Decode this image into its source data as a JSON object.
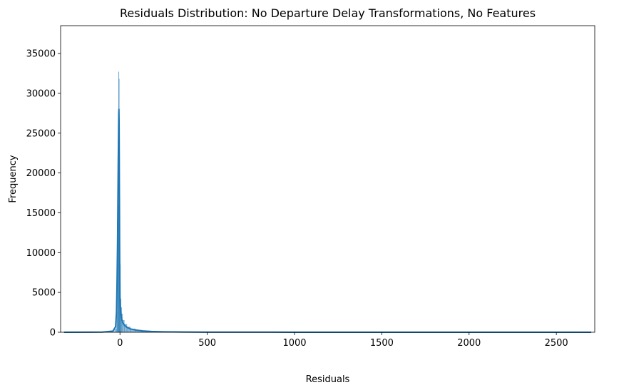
{
  "chart_data": {
    "type": "histogram",
    "title": "Residuals Distribution: No Departure Delay Transformations, No Features",
    "xlabel": "Residuals",
    "ylabel": "Frequency",
    "xlim": [
      -340,
      2720
    ],
    "ylim": [
      0,
      38500
    ],
    "x_ticks": [
      0,
      500,
      1000,
      1500,
      2000,
      2500
    ],
    "y_ticks": [
      0,
      5000,
      10000,
      15000,
      20000,
      25000,
      30000,
      35000
    ],
    "grid": false,
    "legend": "none",
    "series": [
      {
        "kind": "histogram-bars",
        "color": "#1f77b4",
        "bins": [
          {
            "x0": -320,
            "x1": -30,
            "count": 50
          },
          {
            "x0": -30,
            "x1": -20,
            "count": 400
          },
          {
            "x0": -20,
            "x1": -16,
            "count": 2500
          },
          {
            "x0": -16,
            "x1": -13,
            "count": 9000
          },
          {
            "x0": -13,
            "x1": -10,
            "count": 12000
          },
          {
            "x0": -10,
            "x1": -8,
            "count": 16000
          },
          {
            "x0": -8,
            "x1": -6,
            "count": 32700
          },
          {
            "x0": -6,
            "x1": -4,
            "count": 31800
          },
          {
            "x0": -4,
            "x1": -2,
            "count": 26000
          },
          {
            "x0": -2,
            "x1": 0,
            "count": 17000
          },
          {
            "x0": 0,
            "x1": 3,
            "count": 8500
          },
          {
            "x0": 3,
            "x1": 6,
            "count": 4200
          },
          {
            "x0": 6,
            "x1": 10,
            "count": 3100
          },
          {
            "x0": 10,
            "x1": 15,
            "count": 2300
          },
          {
            "x0": 15,
            "x1": 25,
            "count": 1500
          },
          {
            "x0": 25,
            "x1": 40,
            "count": 1000
          },
          {
            "x0": 40,
            "x1": 60,
            "count": 650
          },
          {
            "x0": 60,
            "x1": 90,
            "count": 420
          },
          {
            "x0": 90,
            "x1": 130,
            "count": 260
          },
          {
            "x0": 130,
            "x1": 180,
            "count": 160
          },
          {
            "x0": 180,
            "x1": 250,
            "count": 100
          },
          {
            "x0": 250,
            "x1": 350,
            "count": 60
          },
          {
            "x0": 350,
            "x1": 500,
            "count": 35
          },
          {
            "x0": 500,
            "x1": 2700,
            "count": 15
          }
        ]
      },
      {
        "kind": "kde-line",
        "color": "#1f77b4",
        "x": [
          -320,
          -100,
          -40,
          -25,
          -20,
          -17,
          -14,
          -12,
          -10,
          -8,
          -7,
          -6,
          -5,
          -4,
          -3,
          -2,
          -1,
          0,
          2,
          4,
          6,
          10,
          15,
          25,
          40,
          60,
          90,
          130,
          180,
          250,
          350,
          500,
          1000,
          1500,
          2000,
          2700
        ],
        "y": [
          0,
          20,
          150,
          700,
          2500,
          6000,
          11000,
          16000,
          21000,
          25500,
          27500,
          28000,
          26500,
          22000,
          16500,
          11000,
          7000,
          4500,
          3300,
          2600,
          2100,
          1600,
          1250,
          900,
          620,
          420,
          280,
          170,
          100,
          55,
          30,
          15,
          5,
          3,
          2,
          0
        ]
      }
    ]
  }
}
